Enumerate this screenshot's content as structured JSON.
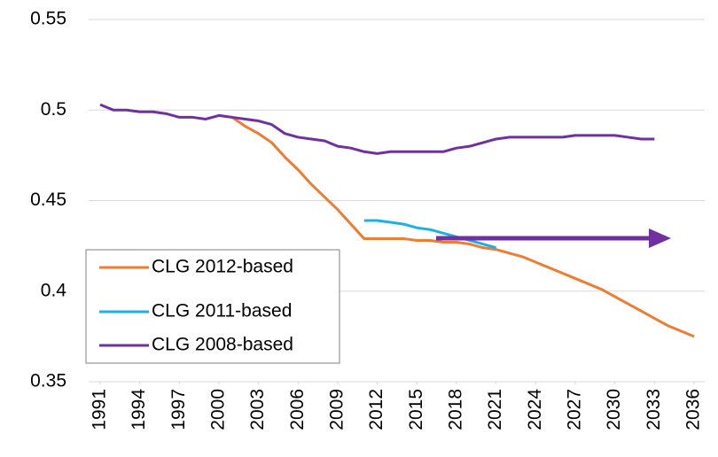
{
  "chart_data": {
    "type": "line",
    "x": [
      1991,
      1992,
      1993,
      1994,
      1995,
      1996,
      1997,
      1998,
      1999,
      2000,
      2001,
      2002,
      2003,
      2004,
      2005,
      2006,
      2007,
      2008,
      2009,
      2010,
      2011,
      2012,
      2013,
      2014,
      2015,
      2016,
      2017,
      2018,
      2019,
      2020,
      2021,
      2022,
      2023,
      2024,
      2025,
      2026,
      2027,
      2028,
      2029,
      2030,
      2031,
      2032,
      2033,
      2034,
      2035,
      2036
    ],
    "series": [
      {
        "name": "CLG 2012-based",
        "color": "#ed7d31",
        "values": [
          null,
          null,
          null,
          null,
          null,
          null,
          null,
          null,
          null,
          0.497,
          0.496,
          0.491,
          0.487,
          0.482,
          0.474,
          0.467,
          0.459,
          0.452,
          0.445,
          0.437,
          0.429,
          0.429,
          0.429,
          0.429,
          0.428,
          0.428,
          0.427,
          0.427,
          0.426,
          0.424,
          0.423,
          0.421,
          0.419,
          0.416,
          0.413,
          0.41,
          0.407,
          0.404,
          0.401,
          0.397,
          0.393,
          0.389,
          0.385,
          0.381,
          0.378,
          0.375
        ]
      },
      {
        "name": "CLG 2011-based",
        "color": "#1cb0e4",
        "values": [
          null,
          null,
          null,
          null,
          null,
          null,
          null,
          null,
          null,
          null,
          null,
          null,
          null,
          null,
          null,
          null,
          null,
          null,
          null,
          null,
          0.439,
          0.439,
          0.438,
          0.437,
          0.435,
          0.434,
          0.432,
          0.43,
          0.428,
          0.426,
          0.424,
          null,
          null,
          null,
          null,
          null,
          null,
          null,
          null,
          null,
          null,
          null,
          null,
          null,
          null,
          null
        ]
      },
      {
        "name": "CLG 2008-based",
        "color": "#7030a0",
        "values": [
          0.503,
          0.5,
          0.5,
          0.499,
          0.499,
          0.498,
          0.496,
          0.496,
          0.495,
          0.497,
          0.496,
          0.495,
          0.494,
          0.492,
          0.487,
          0.485,
          0.484,
          0.483,
          0.48,
          0.479,
          0.477,
          0.476,
          0.477,
          0.477,
          0.477,
          0.477,
          0.477,
          0.479,
          0.48,
          0.482,
          0.484,
          0.485,
          0.485,
          0.485,
          0.485,
          0.485,
          0.486,
          0.486,
          0.486,
          0.486,
          0.485,
          0.484,
          0.484,
          null,
          null,
          null
        ]
      }
    ],
    "xlim": [
      1991,
      2036
    ],
    "xticks": [
      1991,
      1994,
      1997,
      2000,
      2003,
      2006,
      2009,
      2012,
      2015,
      2018,
      2021,
      2024,
      2027,
      2030,
      2033,
      2036
    ],
    "ylim": [
      0.35,
      0.55
    ],
    "yticks": [
      0.35,
      0.4,
      0.45,
      0.5,
      0.55
    ],
    "grid": true,
    "legend": "lower-left"
  }
}
